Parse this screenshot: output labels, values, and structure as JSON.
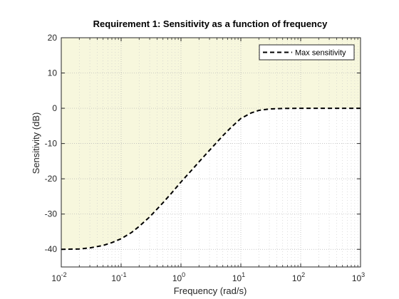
{
  "chart_data": {
    "type": "line",
    "title": "Requirement 1: Sensitivity as a function of frequency",
    "xlabel": "Frequency (rad/s)",
    "ylabel": "Sensitivity (dB)",
    "xscale": "log",
    "xlim": [
      0.01,
      1000
    ],
    "ylim": [
      -45,
      20
    ],
    "grid": true,
    "legend_position": "top-right",
    "x_ticks": [
      {
        "value": 0.01,
        "base": "10",
        "exp": "-2"
      },
      {
        "value": 0.1,
        "base": "10",
        "exp": "-1"
      },
      {
        "value": 1,
        "base": "10",
        "exp": "0"
      },
      {
        "value": 10,
        "base": "10",
        "exp": "1"
      },
      {
        "value": 100,
        "base": "10",
        "exp": "2"
      },
      {
        "value": 1000,
        "base": "10",
        "exp": "3"
      }
    ],
    "y_ticks": [
      20,
      10,
      0,
      -10,
      -20,
      -30,
      -40
    ],
    "colors": {
      "shade": "#f7f7dd",
      "line": "#000000",
      "axis": "#262626",
      "grid": "#b3b3b3"
    },
    "series": [
      {
        "name": "Max sensitivity",
        "style": "dashed",
        "x": [
          0.01,
          0.02,
          0.03,
          0.05,
          0.07,
          0.1,
          0.15,
          0.2,
          0.3,
          0.5,
          0.7,
          1,
          1.5,
          2,
          3,
          5,
          7,
          10,
          15,
          20,
          30,
          50,
          100,
          200,
          500,
          1000
        ],
        "y": [
          -40,
          -39.9,
          -39.6,
          -38.9,
          -38.1,
          -37.0,
          -35.2,
          -33.5,
          -30.8,
          -26.8,
          -24.0,
          -20.9,
          -17.6,
          -15.2,
          -11.9,
          -7.8,
          -5.3,
          -2.9,
          -1.3,
          -0.6,
          -0.2,
          -0.05,
          0,
          0,
          0,
          0
        ]
      }
    ]
  }
}
